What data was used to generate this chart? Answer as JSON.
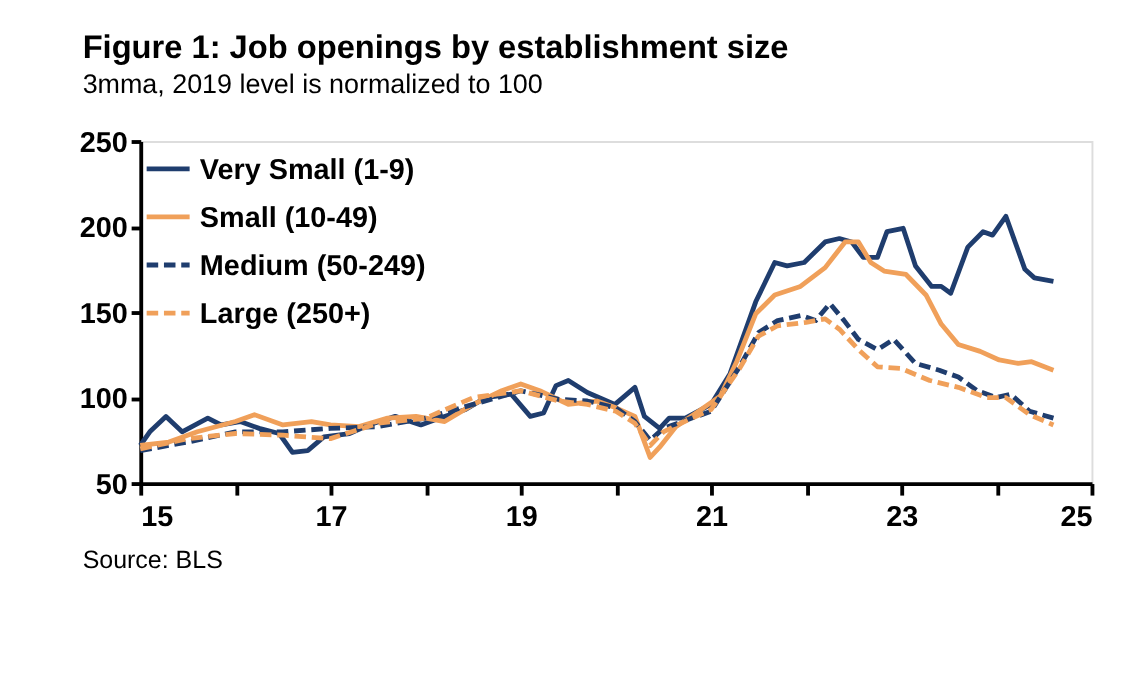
{
  "chart_data": {
    "type": "line",
    "title": "Figure 1: Job openings by establishment size",
    "subtitle": "3mma, 2019 level is normalized to 100",
    "annotations": [
      "Source: BLS"
    ],
    "xlim": [
      15,
      25
    ],
    "ylim": [
      50,
      250
    ],
    "xticks": [
      15,
      {
        "value": 16,
        "label": null
      },
      17,
      {
        "value": 18,
        "label": null
      },
      19,
      {
        "value": 20,
        "label": null
      },
      21,
      {
        "value": 22,
        "label": null
      },
      23,
      {
        "value": 24,
        "label": null
      },
      25
    ],
    "yticks": [
      50,
      100,
      150,
      200,
      250
    ],
    "grid": false,
    "legend": "top left",
    "series": [
      {
        "name": "Very Small (1-9)",
        "color": "#1f3d6e",
        "line_style": "solid",
        "x": [
          15.0,
          15.1,
          15.27,
          15.44,
          15.71,
          15.85,
          16.05,
          16.25,
          16.46,
          16.6,
          16.76,
          16.93,
          17.2,
          17.4,
          17.68,
          17.95,
          18.15,
          18.42,
          18.63,
          18.9,
          19.1,
          19.24,
          19.37,
          19.5,
          19.7,
          19.99,
          20.2,
          20.3,
          20.46,
          20.56,
          20.73,
          21.0,
          21.2,
          21.47,
          21.67,
          21.8,
          21.98,
          22.2,
          22.35,
          22.48,
          22.6,
          22.75,
          22.85,
          23.02,
          23.15,
          23.32,
          23.42,
          23.52,
          23.7,
          23.86,
          23.96,
          24.1,
          24.3,
          24.4,
          24.6
        ],
        "values": [
          72,
          80,
          89,
          80,
          88,
          84,
          86,
          82,
          79,
          68,
          69,
          77,
          79,
          84,
          89,
          84,
          88,
          93,
          100,
          102,
          89,
          91,
          107,
          110,
          103,
          96,
          106,
          89,
          82,
          88,
          88,
          96,
          114,
          156,
          179,
          177,
          179,
          191,
          193,
          191,
          182,
          182,
          197,
          199,
          177,
          165,
          165,
          161,
          188,
          197,
          195,
          206,
          175,
          170,
          168
        ]
      },
      {
        "name": "Small (10-49)",
        "color": "#f0a05a",
        "line_style": "solid",
        "x": [
          15.0,
          15.3,
          15.6,
          16.0,
          16.2,
          16.5,
          16.8,
          17.0,
          17.3,
          17.6,
          17.9,
          18.2,
          18.5,
          18.8,
          19.0,
          19.2,
          19.5,
          19.8,
          20.0,
          20.2,
          20.36,
          20.46,
          20.63,
          20.87,
          21.1,
          21.27,
          21.47,
          21.67,
          21.94,
          22.2,
          22.41,
          22.55,
          22.68,
          22.82,
          23.05,
          23.26,
          23.42,
          23.6,
          23.83,
          24.03,
          24.23,
          24.37,
          24.6
        ],
        "values": [
          72,
          74,
          80,
          86,
          90,
          84,
          86,
          84,
          83,
          88,
          89,
          86,
          96,
          104,
          108,
          104,
          96,
          98,
          94,
          89,
          65,
          71,
          83,
          92,
          101,
          121,
          149,
          160,
          165,
          176,
          191,
          191,
          179,
          174,
          172,
          160,
          143,
          131,
          127,
          122,
          120,
          121,
          116
        ]
      },
      {
        "name": "Medium (50-249)",
        "color": "#1f3d6e",
        "line_style": "dashed",
        "x": [
          15.0,
          15.5,
          16.0,
          16.5,
          17.0,
          17.5,
          18.0,
          18.5,
          19.0,
          19.4,
          19.7,
          20.0,
          20.2,
          20.36,
          20.5,
          20.8,
          21.0,
          21.3,
          21.5,
          21.7,
          21.95,
          22.1,
          22.25,
          22.4,
          22.55,
          22.75,
          22.92,
          23.15,
          23.4,
          23.6,
          23.8,
          24.0,
          24.15,
          24.35,
          24.6
        ],
        "values": [
          69,
          74,
          80,
          80,
          82,
          83,
          88,
          96,
          104,
          99,
          98,
          94,
          86,
          75,
          82,
          88,
          92,
          118,
          138,
          145,
          148,
          145,
          155,
          145,
          134,
          128,
          134,
          120,
          116,
          112,
          104,
          100,
          102,
          92,
          88
        ]
      },
      {
        "name": "Large (250+)",
        "color": "#f0a05a",
        "line_style": "dashed",
        "x": [
          15.0,
          15.5,
          16.0,
          16.5,
          17.0,
          17.5,
          18.0,
          18.5,
          19.0,
          19.4,
          19.7,
          20.0,
          20.2,
          20.36,
          20.5,
          20.8,
          21.0,
          21.3,
          21.5,
          21.7,
          22.0,
          22.2,
          22.35,
          22.55,
          22.75,
          23.0,
          23.3,
          23.6,
          23.9,
          24.1,
          24.35,
          24.6
        ],
        "values": [
          70,
          76,
          79,
          78,
          76,
          85,
          88,
          100,
          104,
          98,
          96,
          92,
          85,
          72,
          80,
          88,
          93,
          117,
          136,
          142,
          144,
          146,
          140,
          128,
          118,
          117,
          110,
          106,
          100,
          100,
          90,
          84
        ]
      }
    ]
  }
}
